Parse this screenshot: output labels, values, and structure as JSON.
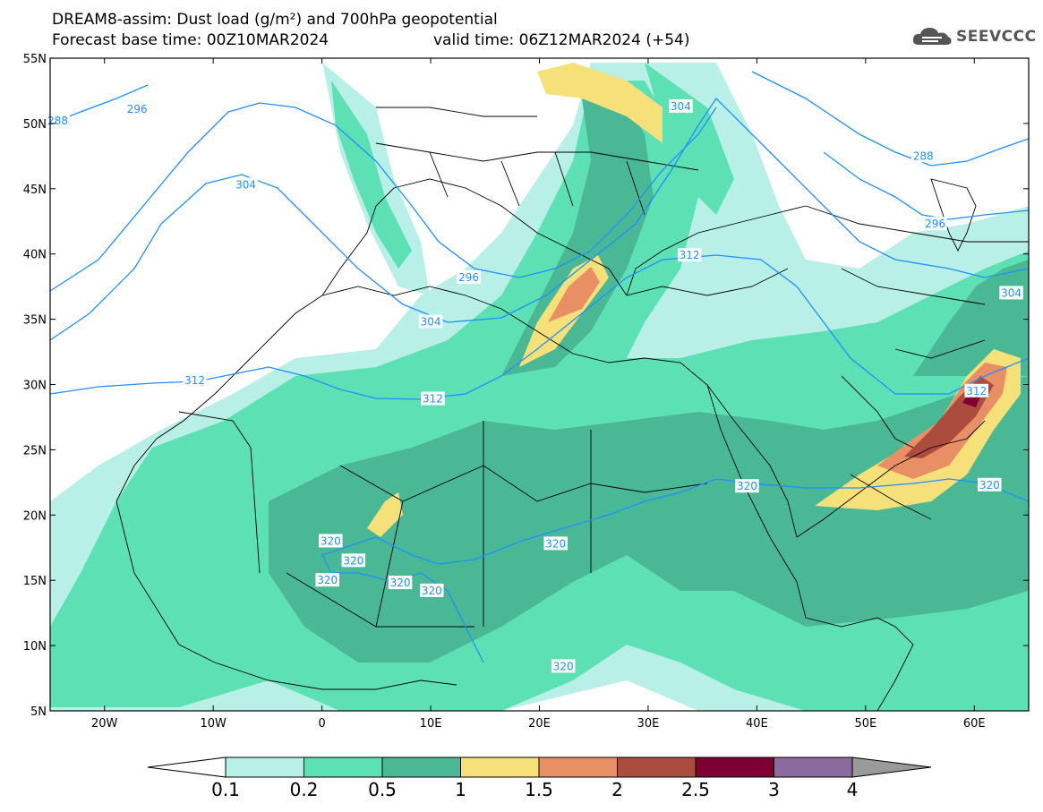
{
  "header": {
    "line1": "DREAM8-assim: Dust load (g/m²) and 700hPa geopotential",
    "line2": "Forecast base time: 00Z10MAR2024",
    "valid": "valid time: 06Z12MAR2024 (+54)",
    "logo_text": "SEEVCCC",
    "logo_icon": "cloud-icon"
  },
  "map_data": {
    "lon_range": [
      -25,
      65
    ],
    "lat_range": [
      5,
      55
    ],
    "lat_ticks": [
      {
        "value": 55,
        "label": "55N"
      },
      {
        "value": 50,
        "label": "50N"
      },
      {
        "value": 45,
        "label": "45N"
      },
      {
        "value": 40,
        "label": "40N"
      },
      {
        "value": 35,
        "label": "35N"
      },
      {
        "value": 30,
        "label": "30N"
      },
      {
        "value": 25,
        "label": "25N"
      },
      {
        "value": 20,
        "label": "20N"
      },
      {
        "value": 15,
        "label": "15N"
      },
      {
        "value": 10,
        "label": "10N"
      },
      {
        "value": 5,
        "label": "5N"
      }
    ],
    "lon_ticks": [
      {
        "value": -20,
        "label": "20W"
      },
      {
        "value": -10,
        "label": "10W"
      },
      {
        "value": 0,
        "label": "0"
      },
      {
        "value": 10,
        "label": "10E"
      },
      {
        "value": 20,
        "label": "20E"
      },
      {
        "value": 30,
        "label": "30E"
      },
      {
        "value": 40,
        "label": "40E"
      },
      {
        "value": 50,
        "label": "50E"
      },
      {
        "value": 60,
        "label": "60E"
      }
    ],
    "contour_labels": [
      {
        "text": "288",
        "lon": -24.3,
        "lat": 50.2
      },
      {
        "text": "296",
        "lon": -17.0,
        "lat": 51.1
      },
      {
        "text": "304",
        "lon": -7.0,
        "lat": 45.3
      },
      {
        "text": "296",
        "lon": 13.5,
        "lat": 38.2
      },
      {
        "text": "304",
        "lon": 10.0,
        "lat": 34.8
      },
      {
        "text": "312",
        "lon": -11.7,
        "lat": 30.3
      },
      {
        "text": "312",
        "lon": 10.2,
        "lat": 28.9
      },
      {
        "text": "312",
        "lon": 33.8,
        "lat": 39.9
      },
      {
        "text": "304",
        "lon": 33.0,
        "lat": 51.3
      },
      {
        "text": "288",
        "lon": 55.3,
        "lat": 47.5
      },
      {
        "text": "296",
        "lon": 56.4,
        "lat": 42.3
      },
      {
        "text": "304",
        "lon": 63.4,
        "lat": 37.0
      },
      {
        "text": "312",
        "lon": 60.2,
        "lat": 29.5
      },
      {
        "text": "320",
        "lon": 39.1,
        "lat": 22.2
      },
      {
        "text": "320",
        "lon": 61.4,
        "lat": 22.3
      },
      {
        "text": "320",
        "lon": 21.5,
        "lat": 17.8
      },
      {
        "text": "320",
        "lon": 0.8,
        "lat": 18.0
      },
      {
        "text": "320",
        "lon": 2.9,
        "lat": 16.5
      },
      {
        "text": "320",
        "lon": 0.5,
        "lat": 15.0
      },
      {
        "text": "320",
        "lon": 7.2,
        "lat": 14.8
      },
      {
        "text": "320",
        "lon": 10.1,
        "lat": 14.2
      },
      {
        "text": "320",
        "lon": 22.2,
        "lat": 8.4
      }
    ]
  },
  "colorbar": {
    "labels": [
      "0.1",
      "0.2",
      "0.5",
      "1",
      "1.5",
      "2",
      "2.5",
      "3",
      "4"
    ],
    "colors": [
      "#b8efe6",
      "#5ee0b5",
      "#4bb895",
      "#f6e07a",
      "#e98f66",
      "#ab4c3f",
      "#7e0033",
      "#8b6b9e"
    ],
    "over_color": "#9a9a9a",
    "under_color": "#ffffff"
  },
  "palette": {
    "contour": "#1e90ff",
    "border": "#000000"
  }
}
